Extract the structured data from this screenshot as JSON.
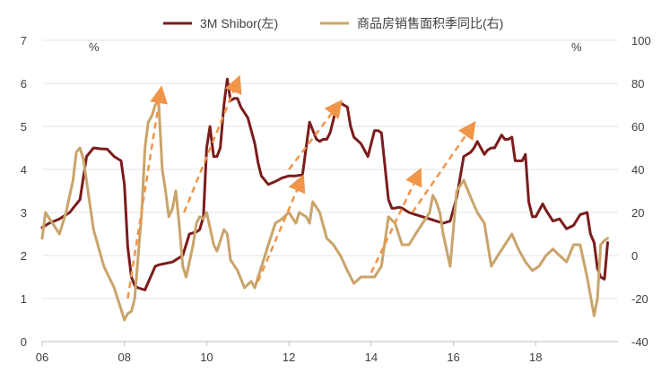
{
  "chart_data": {
    "type": "line",
    "title": "",
    "legend": {
      "placement": "top-center",
      "items": [
        {
          "name": "3M Shibor(左)",
          "color": "#7b1c1c"
        },
        {
          "name": "商品房销售面积季同比(右)",
          "color": "#c9a46a"
        }
      ]
    },
    "left_axis": {
      "unit": "%",
      "ylim": [
        0,
        7
      ],
      "ticks": [
        "0",
        "1",
        "2",
        "3",
        "4",
        "5",
        "6",
        "7"
      ]
    },
    "right_axis": {
      "unit": "%",
      "ylim": [
        -40,
        100
      ],
      "ticks": [
        "-40",
        "-20",
        "0",
        "20",
        "40",
        "60",
        "80",
        "100"
      ]
    },
    "x_axis": {
      "xlim": [
        2006,
        2020
      ],
      "ticks": [
        {
          "value": 2006,
          "label": "06"
        },
        {
          "value": 2008,
          "label": "08"
        },
        {
          "value": 2010,
          "label": "10"
        },
        {
          "value": 2012,
          "label": "12"
        },
        {
          "value": 2014,
          "label": "14"
        },
        {
          "value": 2016,
          "label": "16"
        },
        {
          "value": 2018,
          "label": "18"
        }
      ]
    },
    "grid": "horizontal",
    "series": [
      {
        "name": "3M Shibor(左)",
        "axis": "left",
        "color": "#7b1c1c",
        "x": [
          2006.0,
          2006.17,
          2006.42,
          2006.67,
          2006.92,
          2007.08,
          2007.25,
          2007.42,
          2007.58,
          2007.75,
          2007.92,
          2008.0,
          2008.08,
          2008.17,
          2008.25,
          2008.33,
          2008.5,
          2008.75,
          2008.83,
          2008.92,
          2009.17,
          2009.42,
          2009.58,
          2009.75,
          2009.83,
          2009.92,
          2010.0,
          2010.08,
          2010.17,
          2010.25,
          2010.33,
          2010.42,
          2010.5,
          2010.58,
          2010.67,
          2010.75,
          2010.83,
          2011.0,
          2011.17,
          2011.25,
          2011.33,
          2011.5,
          2011.67,
          2011.83,
          2012.0,
          2012.17,
          2012.33,
          2012.5,
          2012.67,
          2012.75,
          2012.83,
          2012.92,
          2013.0,
          2013.17,
          2013.25,
          2013.33,
          2013.42,
          2013.5,
          2013.58,
          2013.75,
          2013.92,
          2014.08,
          2014.17,
          2014.25,
          2014.42,
          2014.5,
          2014.58,
          2014.67,
          2014.75,
          2014.92,
          2015.08,
          2015.25,
          2015.42,
          2015.58,
          2015.75,
          2015.92,
          2016.08,
          2016.25,
          2016.42,
          2016.5,
          2016.58,
          2016.75,
          2016.83,
          2016.92,
          2017.0,
          2017.17,
          2017.25,
          2017.33,
          2017.42,
          2017.5,
          2017.67,
          2017.75,
          2017.83,
          2017.92,
          2018.0,
          2018.17,
          2018.25,
          2018.42,
          2018.58,
          2018.75,
          2018.92,
          2019.08,
          2019.25,
          2019.33,
          2019.42,
          2019.5,
          2019.58,
          2019.67,
          2019.75
        ],
        "values": [
          2.65,
          2.75,
          2.85,
          3.0,
          3.3,
          4.3,
          4.5,
          4.48,
          4.47,
          4.3,
          4.2,
          3.65,
          2.2,
          1.5,
          1.3,
          1.25,
          1.2,
          1.75,
          1.78,
          1.8,
          1.85,
          2.0,
          2.5,
          2.55,
          2.6,
          2.9,
          4.5,
          5.0,
          4.3,
          4.3,
          4.5,
          5.5,
          6.1,
          5.6,
          5.65,
          5.65,
          5.45,
          5.2,
          4.6,
          4.15,
          3.85,
          3.65,
          3.72,
          3.8,
          3.85,
          3.85,
          3.88,
          5.1,
          4.7,
          4.65,
          4.7,
          4.7,
          4.85,
          5.5,
          5.55,
          5.5,
          5.45,
          5.0,
          4.75,
          4.6,
          4.3,
          4.9,
          4.9,
          4.85,
          3.3,
          3.1,
          3.1,
          3.12,
          3.1,
          3.0,
          2.95,
          2.9,
          2.85,
          2.8,
          2.75,
          2.8,
          3.35,
          4.3,
          4.4,
          4.5,
          4.65,
          4.35,
          4.45,
          4.5,
          4.5,
          4.8,
          4.7,
          4.7,
          4.75,
          4.2,
          4.2,
          4.35,
          3.25,
          2.9,
          2.9,
          3.2,
          3.05,
          2.8,
          2.85,
          2.62,
          2.7,
          2.95,
          3.0,
          2.5,
          2.3,
          1.7,
          1.5,
          1.45,
          2.3
        ]
      },
      {
        "name": "商品房销售面积季同比(右)",
        "axis": "right",
        "color": "#c9a46a",
        "x": [
          2006.0,
          2006.08,
          2006.25,
          2006.42,
          2006.58,
          2006.75,
          2006.83,
          2006.92,
          2007.0,
          2007.25,
          2007.5,
          2007.75,
          2007.92,
          2008.0,
          2008.08,
          2008.17,
          2008.25,
          2008.42,
          2008.5,
          2008.58,
          2008.67,
          2008.75,
          2008.83,
          2008.92,
          2009.0,
          2009.08,
          2009.17,
          2009.25,
          2009.33,
          2009.42,
          2009.5,
          2009.58,
          2009.67,
          2009.75,
          2009.83,
          2009.92,
          2010.0,
          2010.08,
          2010.17,
          2010.25,
          2010.42,
          2010.5,
          2010.58,
          2010.75,
          2010.92,
          2011.08,
          2011.17,
          2011.25,
          2011.42,
          2011.5,
          2011.67,
          2011.83,
          2012.0,
          2012.17,
          2012.25,
          2012.42,
          2012.5,
          2012.58,
          2012.75,
          2012.92,
          2013.08,
          2013.25,
          2013.42,
          2013.58,
          2013.75,
          2013.92,
          2014.08,
          2014.25,
          2014.42,
          2014.58,
          2014.75,
          2014.92,
          2015.08,
          2015.25,
          2015.42,
          2015.5,
          2015.58,
          2015.67,
          2015.75,
          2015.92,
          2016.08,
          2016.25,
          2016.42,
          2016.58,
          2016.75,
          2016.92,
          2017.08,
          2017.25,
          2017.42,
          2017.58,
          2017.75,
          2017.92,
          2018.08,
          2018.25,
          2018.42,
          2018.58,
          2018.75,
          2018.92,
          2019.08,
          2019.25,
          2019.42,
          2019.5,
          2019.58,
          2019.67,
          2019.75
        ],
        "values": [
          8,
          20,
          15,
          10,
          20,
          35,
          48,
          50,
          45,
          12,
          -5,
          -15,
          -25,
          -30,
          -27,
          -26,
          -20,
          20,
          50,
          62,
          65,
          70,
          72,
          40,
          30,
          18,
          22,
          30,
          15,
          -5,
          -10,
          -3,
          5,
          15,
          18,
          17,
          20,
          13,
          5,
          2,
          12,
          10,
          -2,
          -7,
          -15,
          -12,
          -15,
          -10,
          0,
          5,
          15,
          17,
          20,
          15,
          20,
          18,
          15,
          25,
          20,
          8,
          5,
          0,
          -7,
          -13,
          -10,
          -10,
          -10,
          -5,
          18,
          15,
          5,
          5,
          10,
          15,
          20,
          28,
          25,
          20,
          10,
          -5,
          30,
          35,
          27,
          20,
          15,
          -5,
          0,
          5,
          10,
          3,
          -3,
          -7,
          -5,
          0,
          3,
          0,
          -3,
          5,
          5,
          -10,
          -28,
          -20,
          5,
          7,
          8
        ]
      }
    ],
    "annotations": {
      "trend_arrows": [
        {
          "x1": 2008.08,
          "y1": -20,
          "x2": 2008.88,
          "y2": 76
        },
        {
          "x1": 2009.45,
          "y1": 20,
          "x2": 2010.75,
          "y2": 81
        },
        {
          "x1": 2011.25,
          "y1": -12,
          "x2": 2012.3,
          "y2": 35
        },
        {
          "x1": 2012.0,
          "y1": 40,
          "x2": 2013.2,
          "y2": 70
        },
        {
          "x1": 2014.0,
          "y1": -8,
          "x2": 2015.15,
          "y2": 38
        },
        {
          "x1": 2015.0,
          "y1": 20,
          "x2": 2016.45,
          "y2": 60
        }
      ],
      "arrow_color": "#f0954a"
    }
  }
}
